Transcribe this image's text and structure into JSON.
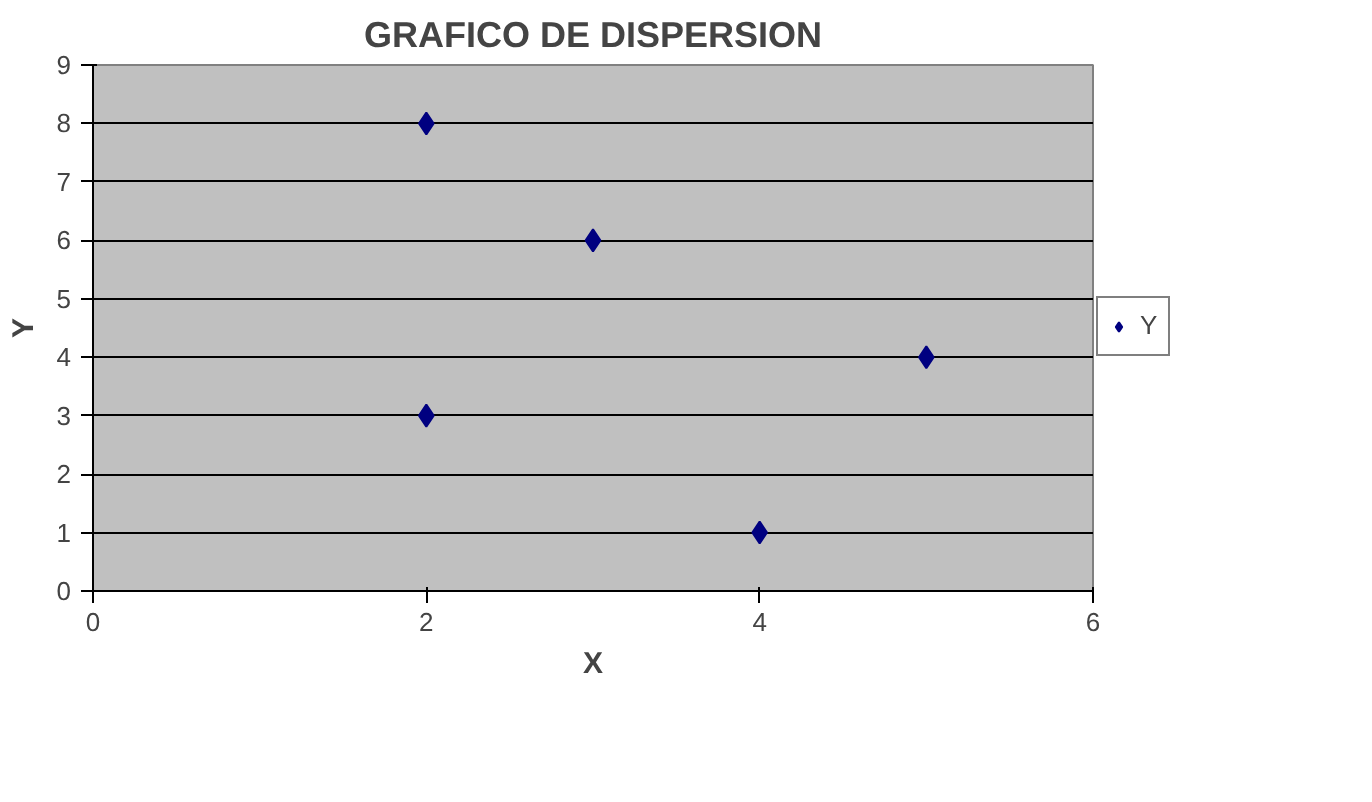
{
  "chart_data": {
    "type": "scatter",
    "title": "GRAFICO DE DISPERSION",
    "xlabel": "X",
    "ylabel": "Y",
    "x": [
      2,
      2,
      3,
      4,
      5
    ],
    "series": [
      {
        "name": "Y",
        "color": "#000080",
        "values": [
          8,
          3,
          6,
          1,
          4
        ]
      }
    ],
    "xlim": [
      0,
      6
    ],
    "xticks": [
      0,
      2,
      4,
      6
    ],
    "ylim": [
      0,
      9
    ],
    "yticks": [
      0,
      1,
      2,
      3,
      4,
      5,
      6,
      7,
      8,
      9
    ],
    "grid": "y",
    "legend": "right",
    "marker": "diamond"
  }
}
